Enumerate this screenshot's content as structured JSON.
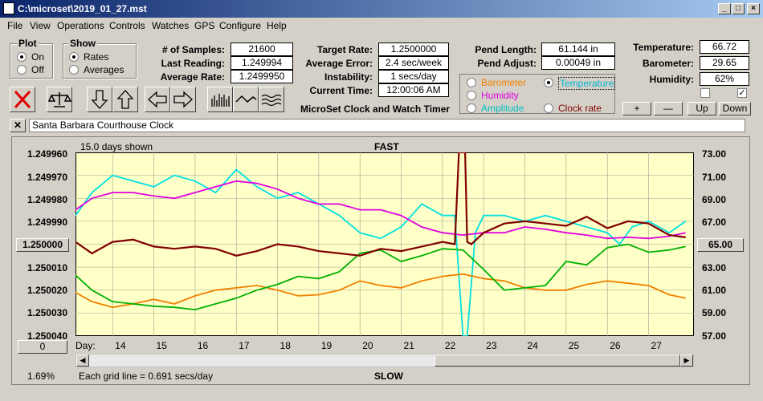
{
  "window": {
    "title": "C:\\microset\\2019_01_27.mst"
  },
  "menu": [
    "File",
    "View",
    "Operations",
    "Controls",
    "Watches",
    "GPS",
    "Configure",
    "Help"
  ],
  "plot_group": {
    "label": "Plot",
    "on": "On",
    "off": "Off",
    "selected": "On"
  },
  "show_group": {
    "label": "Show",
    "rates": "Rates",
    "averages": "Averages",
    "selected": "Rates"
  },
  "stats": {
    "samples_label": "# of Samples:",
    "samples": "21600",
    "last_reading_label": "Last Reading:",
    "last_reading": "1.249994",
    "average_rate_label": "Average Rate:",
    "average_rate": "1.2499950",
    "target_rate_label": "Target Rate:",
    "target_rate": "1.2500000",
    "average_error_label": "Average Error:",
    "average_error": "2.4 sec/week",
    "instability_label": "Instability:",
    "instability": "1 secs/day",
    "current_time_label": "Current Time:",
    "current_time": "12:00:06 AM",
    "pend_length_label": "Pend Length:",
    "pend_length": "61.144 in",
    "pend_adjust_label": "Pend Adjust:",
    "pend_adjust": "0.00049 in",
    "temperature_label": "Temperature:",
    "temperature": "66.72",
    "barometer_label": "Barometer:",
    "barometer": "29.65",
    "humidity_label": "Humidity:",
    "humidity": "62%"
  },
  "sensors": {
    "barometer": "Barometer",
    "temperature": "Temperature",
    "humidity": "Humidity",
    "amplitude": "Amplitude",
    "clock_rate": "Clock rate",
    "selected": "Temperature"
  },
  "sensor_buttons": {
    "plus": "+",
    "minus": "—",
    "up": "Up",
    "down": "Down"
  },
  "timer_caption": "MicroSet Clock and Watch Timer",
  "clock_name": "Santa Barbara Courthouse Clock",
  "chart_header": {
    "days_shown": "15.0 days shown",
    "fast": "FAST",
    "slow": "SLOW",
    "grid_note": "Each grid line = 0.691 secs/day",
    "pct": "1.69%",
    "offset_btn": "0",
    "day_label": "Day:"
  },
  "colors": {
    "temperature": "#00e0e0",
    "humidity": "#e000e0",
    "barometer": "#f08000",
    "amplitude": "#00b000",
    "clock_rate": "#800000",
    "plot_bg": "#ffffc8"
  },
  "chart_data": {
    "type": "line",
    "left_axis": {
      "ticks": [
        "1.249960",
        "1.249970",
        "1.249980",
        "1.249990",
        "1.250000",
        "1.250010",
        "1.250020",
        "1.250030",
        "1.250040"
      ],
      "range": [
        1.24996,
        1.25004
      ]
    },
    "right_axis": {
      "ticks": [
        "73.00",
        "71.00",
        "69.00",
        "67.00",
        "65.00",
        "63.00",
        "61.00",
        "59.00",
        "57.00"
      ],
      "range": [
        57,
        73
      ]
    },
    "days": [
      "14",
      "15",
      "16",
      "17",
      "18",
      "19",
      "20",
      "21",
      "22",
      "23",
      "24",
      "25",
      "26",
      "27"
    ],
    "x_range": [
      13.1,
      28.1
    ],
    "series": [
      {
        "name": "Temperature",
        "color": "#00e0e0",
        "x": [
          13.1,
          13.5,
          14,
          14.5,
          15,
          15.5,
          16,
          16.5,
          17,
          17.5,
          18,
          18.5,
          19,
          19.5,
          20,
          20.5,
          21,
          21.5,
          22,
          22.3,
          22.5,
          22.6,
          22.8,
          23,
          23.5,
          24,
          24.5,
          25,
          25.5,
          26,
          26.3,
          26.6,
          27,
          27.5,
          27.9
        ],
        "y": [
          67.5,
          69.5,
          71,
          70.5,
          70,
          71,
          70.5,
          69.5,
          71.5,
          70,
          69,
          69.5,
          68.5,
          67.5,
          66,
          65.5,
          66.5,
          68.5,
          67.5,
          67.5,
          57,
          57,
          66,
          67.5,
          67.5,
          67,
          67.5,
          67,
          66.5,
          66,
          65,
          66.5,
          67,
          66,
          67
        ]
      },
      {
        "name": "Humidity",
        "color": "#e000e0",
        "x": [
          13.1,
          13.5,
          14,
          14.5,
          15,
          15.5,
          16,
          16.5,
          17,
          17.5,
          18,
          18.5,
          19,
          19.5,
          20,
          20.5,
          21,
          21.5,
          22,
          22.5,
          23,
          23.5,
          24,
          24.5,
          25,
          25.5,
          26,
          26.5,
          27,
          27.5,
          27.9
        ],
        "y": [
          68,
          69,
          69.5,
          69.5,
          69.2,
          69,
          69.5,
          70,
          70.5,
          70.3,
          69.8,
          69,
          68.5,
          68.5,
          68,
          68,
          67.5,
          66.5,
          66,
          65.8,
          66,
          66,
          66.5,
          66.3,
          66,
          65.8,
          65.5,
          65.6,
          65.5,
          65.7,
          66
        ]
      },
      {
        "name": "Barometer",
        "color": "#f08000",
        "x": [
          13.1,
          13.5,
          14,
          14.5,
          15,
          15.5,
          16,
          16.5,
          17,
          17.5,
          18,
          18.5,
          19,
          19.5,
          20,
          20.5,
          21,
          21.5,
          22,
          22.5,
          23,
          23.5,
          24,
          24.5,
          25,
          25.5,
          26,
          26.5,
          27,
          27.5,
          27.9
        ],
        "y": [
          60.8,
          60,
          59.5,
          59.8,
          60.2,
          59.8,
          60.5,
          61,
          61.2,
          61.4,
          61,
          60.5,
          60.6,
          61,
          61.8,
          61.4,
          61.2,
          61.8,
          62.2,
          62.4,
          62,
          61.8,
          61.2,
          61,
          61,
          61.5,
          61.8,
          61.6,
          61.4,
          60.6,
          60.3
        ]
      },
      {
        "name": "Amplitude",
        "color": "#00b000",
        "x": [
          13.1,
          13.5,
          14,
          14.5,
          15,
          15.5,
          16,
          16.5,
          17,
          17.5,
          18,
          18.5,
          19,
          19.5,
          20,
          20.5,
          21,
          21.5,
          22,
          22.5,
          23,
          23.5,
          24,
          24.5,
          25,
          25.5,
          26,
          26.5,
          27,
          27.5,
          27.9
        ],
        "y": [
          62.3,
          61,
          60,
          59.8,
          59.6,
          59.5,
          59.3,
          59.8,
          60.3,
          61,
          61.5,
          62.2,
          62,
          62.6,
          64.2,
          64.5,
          63.5,
          64,
          64.6,
          64.5,
          62.8,
          61,
          61.2,
          61.4,
          63.5,
          63.2,
          64.7,
          65,
          64.3,
          64.5,
          64.8
        ]
      },
      {
        "name": "Clock rate",
        "color": "#800000",
        "x": [
          13.1,
          13.5,
          14,
          14.5,
          15,
          15.5,
          16,
          16.5,
          17,
          17.5,
          18,
          18.5,
          19,
          19.5,
          20,
          20.5,
          21,
          21.5,
          22,
          22.3,
          22.4,
          22.45,
          22.55,
          22.6,
          22.7,
          23,
          23.5,
          24,
          24.5,
          25,
          25.5,
          26,
          26.5,
          27,
          27.5,
          27.9
        ],
        "y": [
          1.249999,
          1.250004,
          1.249999,
          1.249998,
          1.250001,
          1.250002,
          1.250001,
          1.250002,
          1.250005,
          1.250003,
          1.25,
          1.250001,
          1.250003,
          1.250004,
          1.250005,
          1.250002,
          1.250003,
          1.250001,
          1.249999,
          1.25,
          1.24996,
          1.24996,
          1.24996,
          1.249999,
          1.25,
          1.249995,
          1.249991,
          1.24999,
          1.249991,
          1.249992,
          1.249988,
          1.249993,
          1.24999,
          1.249991,
          1.249996,
          1.249997
        ]
      }
    ]
  }
}
